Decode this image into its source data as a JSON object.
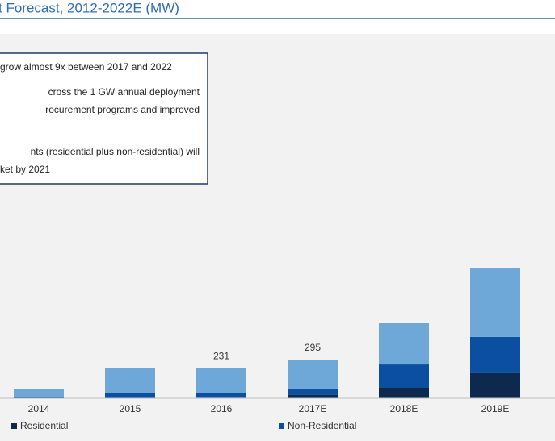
{
  "chart_data": {
    "type": "stacked-bar",
    "title": "t Forecast, 2012-2022E (MW)",
    "annotations": [
      "grow almost 9x between 2017 and 2022",
      "cross the 1 GW annual deployment",
      "rocurement programs and improved",
      "nts (residential plus non-residential) will",
      "ket by 2021"
    ],
    "categories": [
      "2014",
      "2015",
      "2016",
      "2017E",
      "2018E",
      "2019E"
    ],
    "series": [
      {
        "name": "Residential",
        "color": "#0d2a4e",
        "values": [
          1,
          3,
          4,
          25,
          80,
          191
        ]
      },
      {
        "name": "Non-Residential",
        "color": "#0b4fa0",
        "values": [
          8,
          37,
          39,
          50,
          178,
          277
        ]
      },
      {
        "color": "#6ea8d8",
        "values": [
          59,
          188,
          188,
          220,
          314,
          522
        ]
      }
    ],
    "totals": [
      null,
      null,
      231,
      295,
      null,
      null
    ]
  }
}
